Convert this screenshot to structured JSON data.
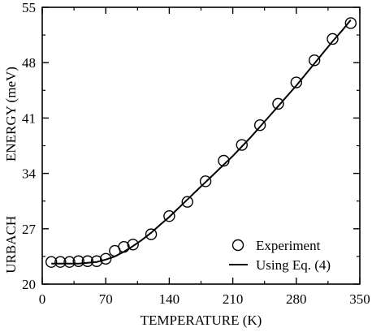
{
  "chart_data": {
    "type": "scatter",
    "xlabel": "TEMPERATURE (K)",
    "ylabel_words": [
      "URBACH",
      "ENERGY (meV)"
    ],
    "xlim": [
      0,
      350
    ],
    "ylim": [
      20,
      55
    ],
    "xticks": [
      0,
      70,
      140,
      210,
      280,
      350
    ],
    "yticks": [
      20,
      27,
      34,
      41,
      48,
      55
    ],
    "grid": false,
    "legend_position": "bottom-right",
    "series": [
      {
        "name": "Experiment",
        "marker": "open-circle",
        "x": [
          10,
          20,
          30,
          40,
          50,
          60,
          70,
          80,
          90,
          100,
          120,
          140,
          160,
          180,
          200,
          220,
          240,
          260,
          280,
          300,
          320,
          340
        ],
        "y": [
          22.8,
          22.8,
          22.8,
          22.9,
          22.9,
          22.9,
          23.2,
          24.2,
          24.7,
          25.0,
          26.3,
          28.6,
          30.4,
          33.0,
          35.6,
          37.6,
          40.1,
          42.8,
          45.5,
          48.3,
          51.0,
          53.0
        ]
      },
      {
        "name": "Using Eq. (4)",
        "marker": "line",
        "x": [
          10,
          20,
          30,
          40,
          50,
          60,
          70,
          80,
          90,
          100,
          110,
          120,
          130,
          140,
          150,
          160,
          170,
          180,
          190,
          200,
          210,
          220,
          230,
          240,
          250,
          260,
          270,
          280,
          290,
          300,
          310,
          320,
          330,
          340
        ],
        "y": [
          22.6,
          22.6,
          22.6,
          22.6,
          22.7,
          22.8,
          23.1,
          23.5,
          24.1,
          24.8,
          25.6,
          26.5,
          27.5,
          28.5,
          29.6,
          30.7,
          31.8,
          32.9,
          34.0,
          35.1,
          36.2,
          37.4,
          38.6,
          39.9,
          41.2,
          42.5,
          43.8,
          45.1,
          46.5,
          47.9,
          49.3,
          50.7,
          52.0,
          53.4
        ]
      }
    ]
  }
}
